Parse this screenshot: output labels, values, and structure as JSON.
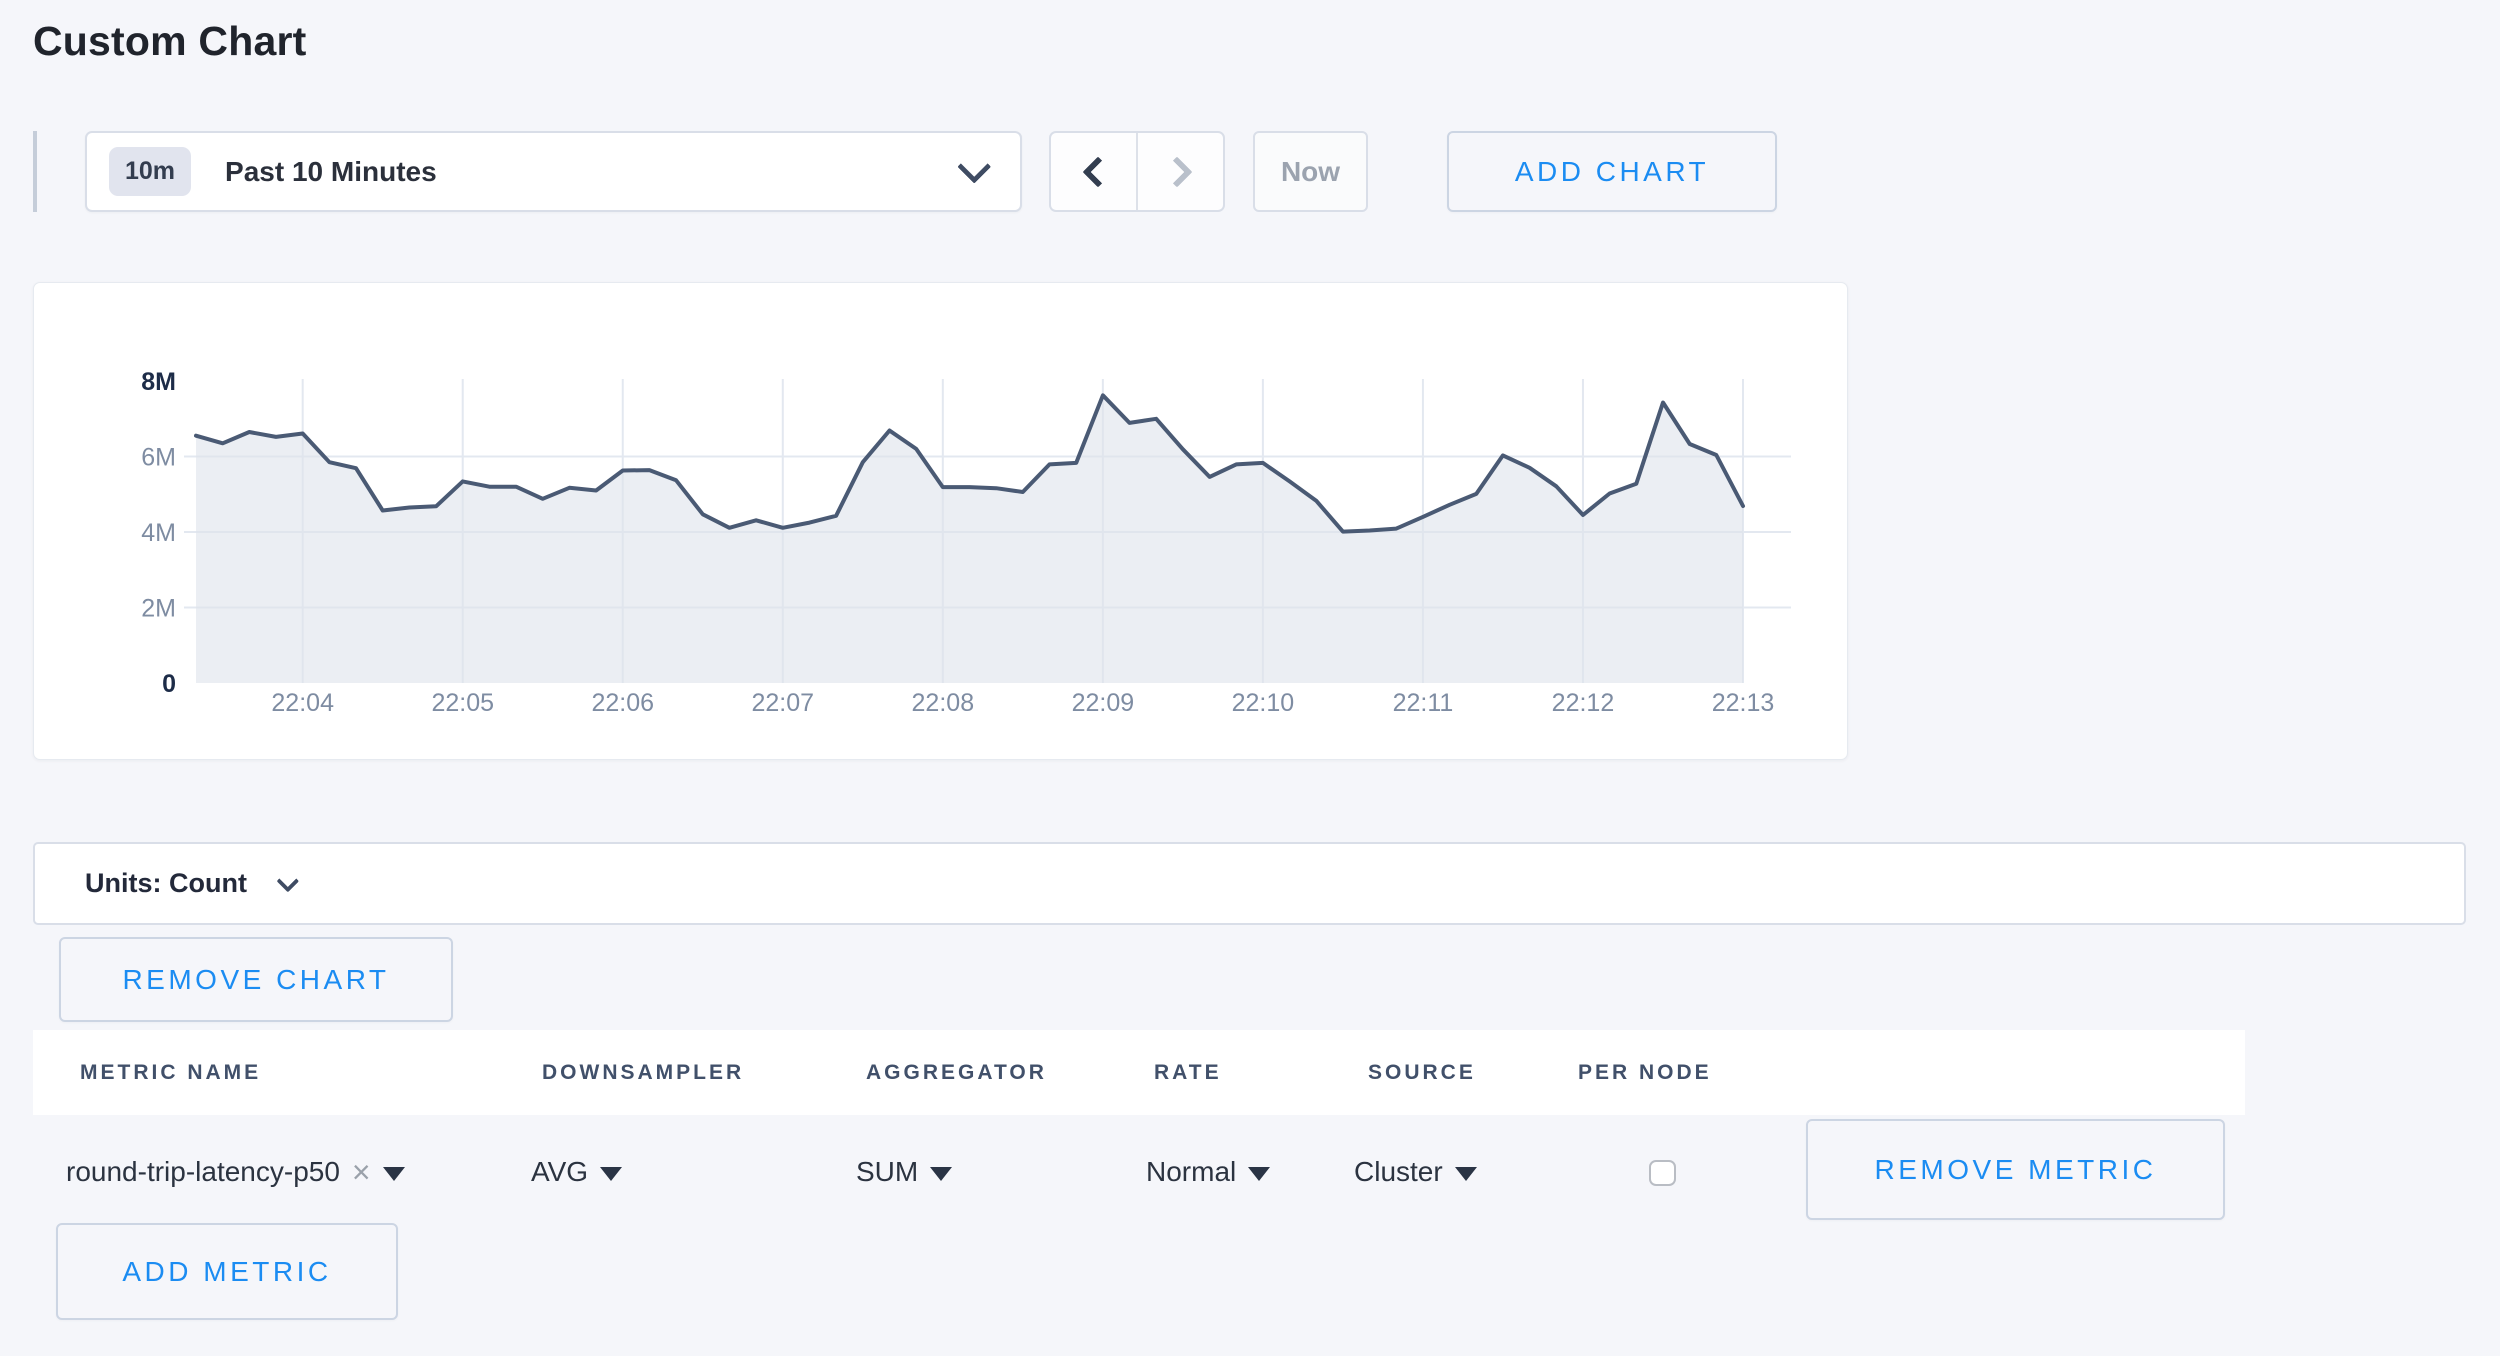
{
  "page": {
    "title": "Custom Chart"
  },
  "toolbar": {
    "range_badge": "10m",
    "range_label": "Past 10 Minutes",
    "now_label": "Now",
    "add_chart_label": "ADD CHART"
  },
  "chart_data": {
    "type": "area",
    "title": "",
    "xlabel": "",
    "ylabel": "count",
    "ylim": [
      0,
      8000000
    ],
    "grid": true,
    "legend": "none",
    "x_ticks": [
      "22:04",
      "22:05",
      "22:06",
      "22:07",
      "22:08",
      "22:09",
      "22:10",
      "22:11",
      "22:12",
      "22:13"
    ],
    "y_ticks": [
      "0",
      "2M",
      "4M",
      "6M",
      "8M"
    ],
    "points_per_x_tick": 6,
    "sample_interval_seconds": 10,
    "series": [
      {
        "name": "round-trip-latency-p50",
        "values_millions": [
          6.55,
          6.35,
          6.65,
          6.52,
          6.61,
          5.85,
          5.69,
          4.57,
          4.65,
          4.68,
          5.34,
          5.2,
          5.2,
          4.88,
          5.17,
          5.1,
          5.63,
          5.64,
          5.37,
          4.47,
          4.11,
          4.31,
          4.11,
          4.25,
          4.43,
          5.85,
          6.69,
          6.2,
          5.19,
          5.19,
          5.16,
          5.06,
          5.79,
          5.83,
          7.62,
          6.89,
          7.0,
          6.19,
          5.46,
          5.79,
          5.83,
          5.34,
          4.83,
          4.01,
          4.04,
          4.09,
          4.4,
          4.72,
          5.01,
          6.03,
          5.7,
          5.21,
          4.45,
          5.02,
          5.28,
          7.43,
          6.33,
          6.04,
          4.69
        ]
      }
    ],
    "colors": {
      "line": "#4a5a74",
      "area_fill": "rgba(223,227,236,0.62)",
      "grid_line": "#e3e8f0",
      "axis_label_muted": "#7e8ca2",
      "axis_label_strong": "#1d2c48"
    }
  },
  "units_bar": {
    "label": "Units: Count"
  },
  "chart_actions": {
    "remove_chart_label": "REMOVE CHART"
  },
  "metrics_table": {
    "columns": [
      "METRIC NAME",
      "DOWNSAMPLER",
      "AGGREGATOR",
      "RATE",
      "SOURCE",
      "PER NODE"
    ],
    "rows": [
      {
        "metric_name": "round-trip-latency-p50",
        "clear_icon": "×",
        "downsampler": "AVG",
        "aggregator": "SUM",
        "rate": "Normal",
        "source": "Cluster",
        "per_node_checked": false,
        "remove_label": "REMOVE METRIC"
      }
    ],
    "add_metric_label": "ADD METRIC"
  },
  "theme": {
    "accent_blue": "#1b8cf2",
    "page_background": "#f5f6fa",
    "panel_background": "#ffffff",
    "border": "#d9dee8"
  }
}
